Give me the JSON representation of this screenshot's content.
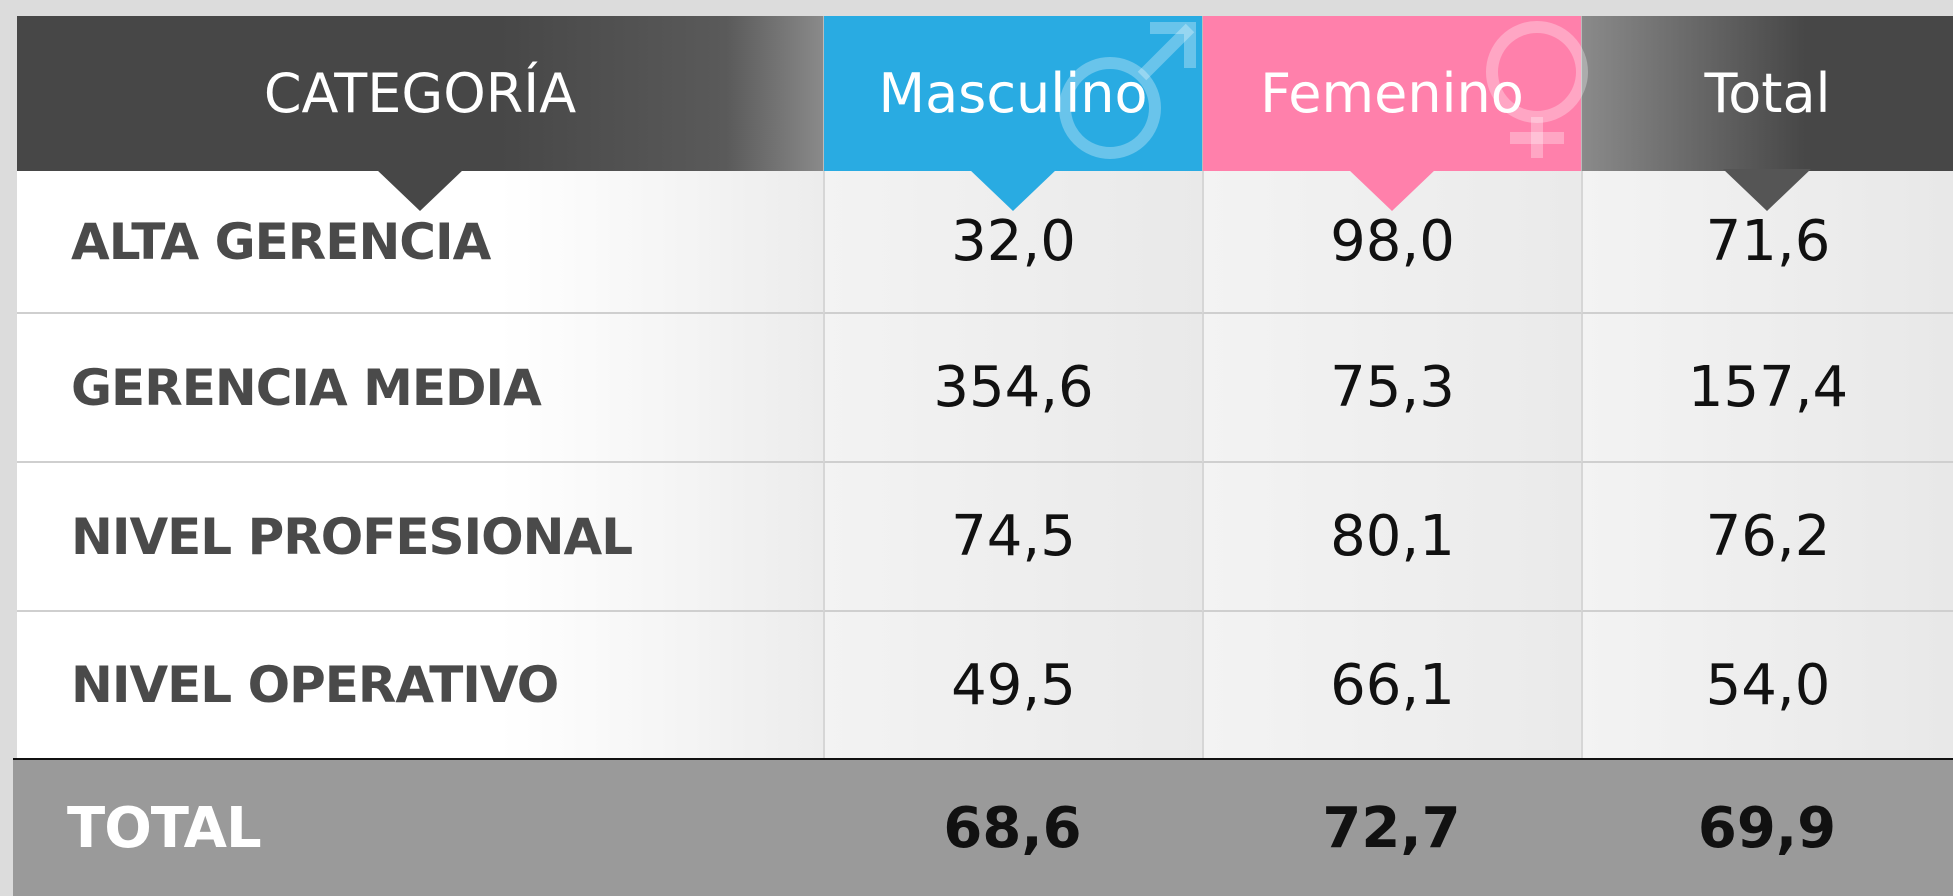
{
  "table": {
    "headers": [
      "CATEGORÍA",
      "Masculino",
      "Femenino",
      "Total"
    ],
    "rows": [
      [
        "ALTA GERENCIA",
        "32,0",
        "98,0",
        "71,6"
      ],
      [
        "GERENCIA MEDIA",
        "354,6",
        "75,3",
        "157,4"
      ],
      [
        "NIVEL PROFESIONAL",
        "74,5",
        "80,1",
        "76,2"
      ],
      [
        "NIVEL OPERATIVO",
        "49,5",
        "66,1",
        "54,0"
      ]
    ],
    "total": [
      "TOTAL",
      "68,6",
      "72,7",
      "69,9"
    ]
  }
}
